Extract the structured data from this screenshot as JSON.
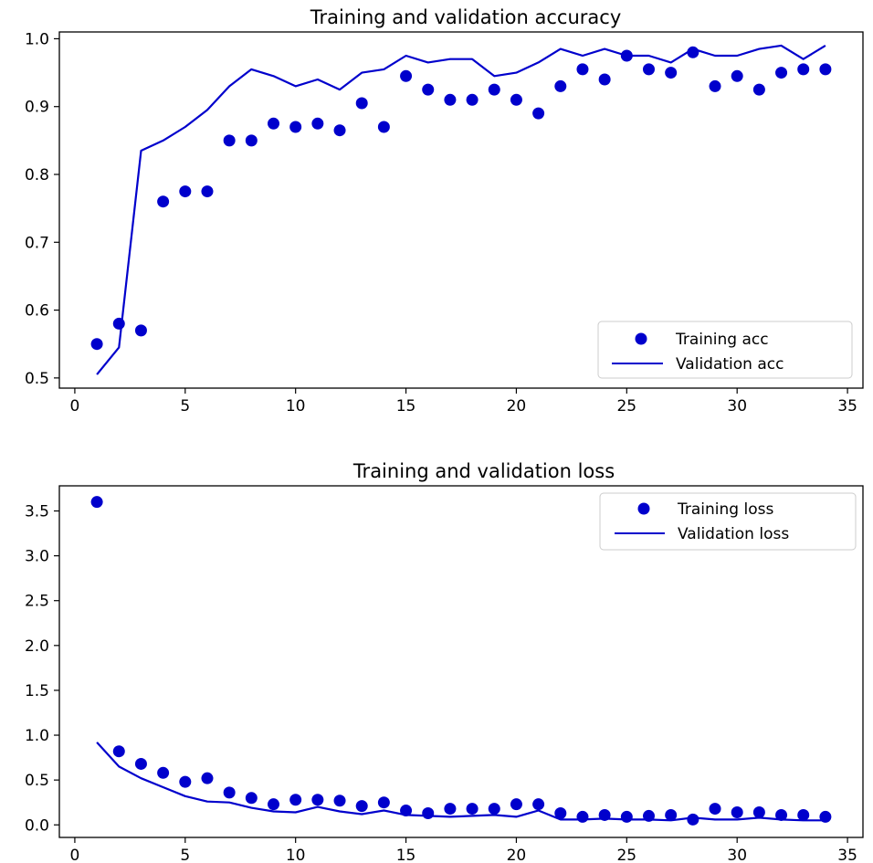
{
  "colors": {
    "series": "#0000cc",
    "axes": "#000000",
    "legend_border": "#cccccc",
    "background": "#ffffff"
  },
  "chart_data": [
    {
      "type": "scatter",
      "title": "Training and validation accuracy",
      "xlabel": "",
      "ylabel": "",
      "xlim": [
        -0.7,
        35.7
      ],
      "ylim": [
        0.485,
        1.01
      ],
      "xticks": [
        0,
        5,
        10,
        15,
        20,
        25,
        30,
        35
      ],
      "yticks": [
        0.5,
        0.6,
        0.7,
        0.8,
        0.9,
        1.0
      ],
      "ytick_labels": [
        "0.5",
        "0.6",
        "0.7",
        "0.8",
        "0.9",
        "1.0"
      ],
      "grid": false,
      "legend_position": "lower-right",
      "series": [
        {
          "name": "Training acc",
          "style": "markers",
          "x": [
            1,
            2,
            3,
            4,
            5,
            6,
            7,
            8,
            9,
            10,
            11,
            12,
            13,
            14,
            15,
            16,
            17,
            18,
            19,
            20,
            21,
            22,
            23,
            24,
            25,
            26,
            27,
            28,
            29,
            30,
            31,
            32,
            33,
            34
          ],
          "y": [
            0.55,
            0.58,
            0.57,
            0.76,
            0.775,
            0.775,
            0.85,
            0.85,
            0.875,
            0.87,
            0.875,
            0.865,
            0.905,
            0.87,
            0.945,
            0.925,
            0.91,
            0.91,
            0.925,
            0.91,
            0.89,
            0.93,
            0.955,
            0.94,
            0.975,
            0.955,
            0.95,
            0.98,
            0.93,
            0.945,
            0.925,
            0.95,
            0.955,
            0.955
          ]
        },
        {
          "name": "Validation acc",
          "style": "line",
          "x": [
            1,
            2,
            3,
            4,
            5,
            6,
            7,
            8,
            9,
            10,
            11,
            12,
            13,
            14,
            15,
            16,
            17,
            18,
            19,
            20,
            21,
            22,
            23,
            24,
            25,
            26,
            27,
            28,
            29,
            30,
            31,
            32,
            33,
            34
          ],
          "y": [
            0.505,
            0.545,
            0.835,
            0.85,
            0.87,
            0.895,
            0.93,
            0.955,
            0.945,
            0.93,
            0.94,
            0.925,
            0.95,
            0.955,
            0.975,
            0.965,
            0.97,
            0.97,
            0.945,
            0.95,
            0.965,
            0.985,
            0.975,
            0.985,
            0.975,
            0.975,
            0.965,
            0.985,
            0.975,
            0.975,
            0.985,
            0.99,
            0.97,
            0.99
          ]
        }
      ]
    },
    {
      "type": "scatter",
      "title": "Training and validation loss",
      "xlabel": "",
      "ylabel": "",
      "xlim": [
        -0.7,
        35.7
      ],
      "ylim": [
        -0.14,
        3.78
      ],
      "xticks": [
        0,
        5,
        10,
        15,
        20,
        25,
        30,
        35
      ],
      "yticks": [
        0.0,
        0.5,
        1.0,
        1.5,
        2.0,
        2.5,
        3.0,
        3.5
      ],
      "ytick_labels": [
        "0.0",
        "0.5",
        "1.0",
        "1.5",
        "2.0",
        "2.5",
        "3.0",
        "3.5"
      ],
      "grid": false,
      "legend_position": "upper-right",
      "series": [
        {
          "name": "Training loss",
          "style": "markers",
          "x": [
            1,
            2,
            3,
            4,
            5,
            6,
            7,
            8,
            9,
            10,
            11,
            12,
            13,
            14,
            15,
            16,
            17,
            18,
            19,
            20,
            21,
            22,
            23,
            24,
            25,
            26,
            27,
            28,
            29,
            30,
            31,
            32,
            33,
            34
          ],
          "y": [
            3.6,
            0.82,
            0.68,
            0.58,
            0.48,
            0.52,
            0.36,
            0.3,
            0.23,
            0.28,
            0.28,
            0.27,
            0.21,
            0.25,
            0.16,
            0.13,
            0.18,
            0.18,
            0.18,
            0.23,
            0.23,
            0.13,
            0.09,
            0.11,
            0.09,
            0.1,
            0.11,
            0.06,
            0.18,
            0.14,
            0.14,
            0.11,
            0.11,
            0.09
          ]
        },
        {
          "name": "Validation loss",
          "style": "line",
          "x": [
            1,
            2,
            3,
            4,
            5,
            6,
            7,
            8,
            9,
            10,
            11,
            12,
            13,
            14,
            15,
            16,
            17,
            18,
            19,
            20,
            21,
            22,
            23,
            24,
            25,
            26,
            27,
            28,
            29,
            30,
            31,
            32,
            33,
            34
          ],
          "y": [
            0.92,
            0.65,
            0.52,
            0.42,
            0.32,
            0.26,
            0.25,
            0.19,
            0.15,
            0.14,
            0.2,
            0.15,
            0.12,
            0.16,
            0.11,
            0.1,
            0.09,
            0.1,
            0.11,
            0.09,
            0.16,
            0.06,
            0.06,
            0.07,
            0.06,
            0.06,
            0.05,
            0.08,
            0.06,
            0.06,
            0.08,
            0.06,
            0.05,
            0.05
          ]
        }
      ]
    }
  ]
}
